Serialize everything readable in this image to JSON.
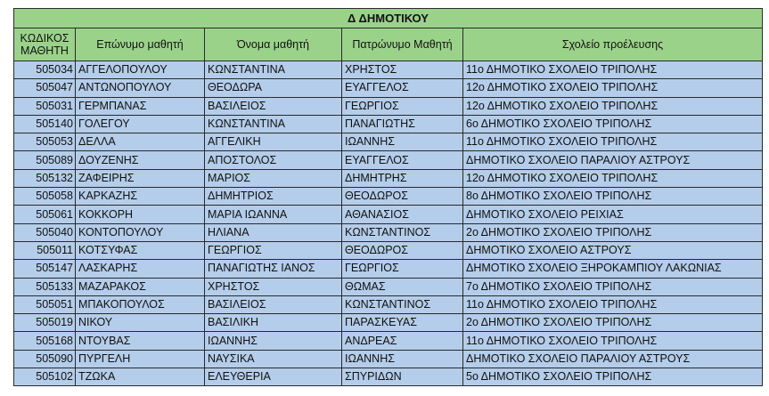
{
  "title": "Δ ΔΗΜΟΤΙΚΟΥ",
  "headers": {
    "code": "ΚΩΔΙΚΟΣ ΜΑΘΗΤΗ",
    "surname": "Επώνυμο μαθητή",
    "name": "Όνομα μαθητή",
    "father": "Πατρώνυμο Μαθητή",
    "school": "Σχολείο προέλευσης"
  },
  "rows": [
    {
      "code": "505034",
      "surname": "ΑΓΓΕΛΟΠΟΥΛΟΥ",
      "name": "ΚΩΝΣΤΑΝΤΙΝΑ",
      "father": "ΧΡΗΣΤΟΣ",
      "school": "11ο ΔΗΜΟΤΙΚΟ ΣΧΟΛΕΙΟ ΤΡΙΠΟΛΗΣ"
    },
    {
      "code": "505047",
      "surname": "ΑΝΤΩΝΟΠΟΥΛΟΥ",
      "name": "ΘΕΟΔΩΡΑ",
      "father": "ΕΥΑΓΓΕΛΟΣ",
      "school": "12ο ΔΗΜΟΤΙΚΟ ΣΧΟΛΕΙΟ ΤΡΙΠΟΛΗΣ"
    },
    {
      "code": "505031",
      "surname": "ΓΕΡΜΠΑΝΑΣ",
      "name": "ΒΑΣΙΛΕΙΟΣ",
      "father": "ΓΕΩΡΓΙΟΣ",
      "school": "12ο ΔΗΜΟΤΙΚΟ ΣΧΟΛΕΙΟ ΤΡΙΠΟΛΗΣ"
    },
    {
      "code": "505140",
      "surname": "ΓΟΛΕΓΟΥ",
      "name": "ΚΩΝΣΤΑΝΤΙΝΑ",
      "father": "ΠΑΝΑΓΙΩΤΗΣ",
      "school": "6ο ΔΗΜΟΤΙΚΟ ΣΧΟΛΕΙΟ ΤΡΙΠΟΛΗΣ"
    },
    {
      "code": "505053",
      "surname": "ΔΕΛΛΑ",
      "name": "ΑΓΓΕΛΙΚΗ",
      "father": "ΙΩΑΝΝΗΣ",
      "school": "11ο ΔΗΜΟΤΙΚΟ ΣΧΟΛΕΙΟ ΤΡΙΠΟΛΗΣ"
    },
    {
      "code": "505089",
      "surname": "ΔΟΥΖΕΝΗΣ",
      "name": "ΑΠΟΣΤΟΛΟΣ",
      "father": "ΕΥΑΓΓΕΛΟΣ",
      "school": "ΔΗΜΟΤΙΚΟ ΣΧΟΛΕΙΟ ΠΑΡΑΛΙΟΥ ΑΣΤΡΟΥΣ"
    },
    {
      "code": "505132",
      "surname": "ΖΑΦΕΙΡΗΣ",
      "name": "ΜΑΡΙΟΣ",
      "father": "ΔΗΜΗΤΡΗΣ",
      "school": "12ο ΔΗΜΟΤΙΚΟ ΣΧΟΛΕΙΟ ΤΡΙΠΟΛΗΣ"
    },
    {
      "code": "505058",
      "surname": "ΚΑΡΚΑΖΗΣ",
      "name": "ΔΗΜΗΤΡΙΟΣ",
      "father": "ΘΕΟΔΩΡΟΣ",
      "school": "8ο ΔΗΜΟΤΙΚΟ ΣΧΟΛΕΙΟ ΤΡΙΠΟΛΗΣ"
    },
    {
      "code": "505061",
      "surname": "ΚΟΚΚΟΡΗ",
      "name": "ΜΑΡΙΑ ΙΩΑΝΝΑ",
      "father": "ΑΘΑΝΑΣΙΟΣ",
      "school": "ΔΗΜΟΤΙΚΟ ΣΧΟΛΕΙΟ ΡΕΙΧΙΑΣ"
    },
    {
      "code": "505040",
      "surname": "ΚΟΝΤΟΠΟΥΛΟΥ",
      "name": "ΗΛΙΑΝΑ",
      "father": "ΚΩΝΣΤΑΝΤΙΝΟΣ",
      "school": "2ο ΔΗΜΟΤΙΚΟ ΣΧΟΛΕΙΟ ΤΡΙΠΟΛΗΣ"
    },
    {
      "code": "505011",
      "surname": "ΚΟΤΣΥΦΑΣ",
      "name": "ΓΕΩΡΓΙΟΣ",
      "father": "ΘΕΟΔΩΡΟΣ",
      "school": "ΔΗΜΟΤΙΚΟ ΣΧΟΛΕΙΟ ΑΣΤΡΟΥΣ"
    },
    {
      "code": "505147",
      "surname": "ΛΑΣΚΑΡΗΣ",
      "name": "ΠΑΝΑΓΙΩΤΗΣ ΙΑΝΟΣ",
      "father": "ΓΕΩΡΓΙΟΣ",
      "school": "ΔΗΜΟΤΙΚΟ ΣΧΟΛΕΙΟ ΞΗΡΟΚΑΜΠΙΟΥ ΛΑΚΩΝΙΑΣ"
    },
    {
      "code": "505133",
      "surname": "ΜΑΖΑΡΑΚΟΣ",
      "name": "ΧΡΗΣΤΟΣ",
      "father": "ΘΩΜΑΣ",
      "school": "7ο ΔΗΜΟΤΙΚΟ ΣΧΟΛΕΙΟ ΤΡΙΠΟΛΗΣ"
    },
    {
      "code": "505051",
      "surname": "ΜΠΑΚΟΠΟΥΛΟΣ",
      "name": "ΒΑΣΙΛΕΙΟΣ",
      "father": "ΚΩΝΣΤΑΝΤΙΝΟΣ",
      "school": "11ο ΔΗΜΟΤΙΚΟ ΣΧΟΛΕΙΟ ΤΡΙΠΟΛΗΣ"
    },
    {
      "code": "505019",
      "surname": "ΝΙΚΟΥ",
      "name": "ΒΑΣΙΛΙΚΗ",
      "father": "ΠΑΡΑΣΚΕΥΑΣ",
      "school": "2ο ΔΗΜΟΤΙΚΟ ΣΧΟΛΕΙΟ ΤΡΙΠΟΛΗΣ"
    },
    {
      "code": "505168",
      "surname": "ΝΤΟΥΒΑΣ",
      "name": "ΙΩΑΝΝΗΣ",
      "father": "ΑΝΔΡΕΑΣ",
      "school": "11ο ΔΗΜΟΤΙΚΟ ΣΧΟΛΕΙΟ ΤΡΙΠΟΛΗΣ"
    },
    {
      "code": "505090",
      "surname": "ΠΥΡΓΕΛΗ",
      "name": "ΝΑΥΣΙΚΑ",
      "father": "ΙΩΑΝΝΗΣ",
      "school": "ΔΗΜΟΤΙΚΟ ΣΧΟΛΕΙΟ ΠΑΡΑΛΙΟΥ ΑΣΤΡΟΥΣ"
    },
    {
      "code": "505102",
      "surname": "ΤΖΩΚΑ",
      "name": "ΕΛΕΥΘΕΡΙΑ",
      "father": "ΣΠΥΡΙΔΩΝ",
      "school": "5ο ΔΗΜΟΤΙΚΟ ΣΧΟΛΕΙΟ ΤΡΙΠΟΛΗΣ"
    }
  ]
}
